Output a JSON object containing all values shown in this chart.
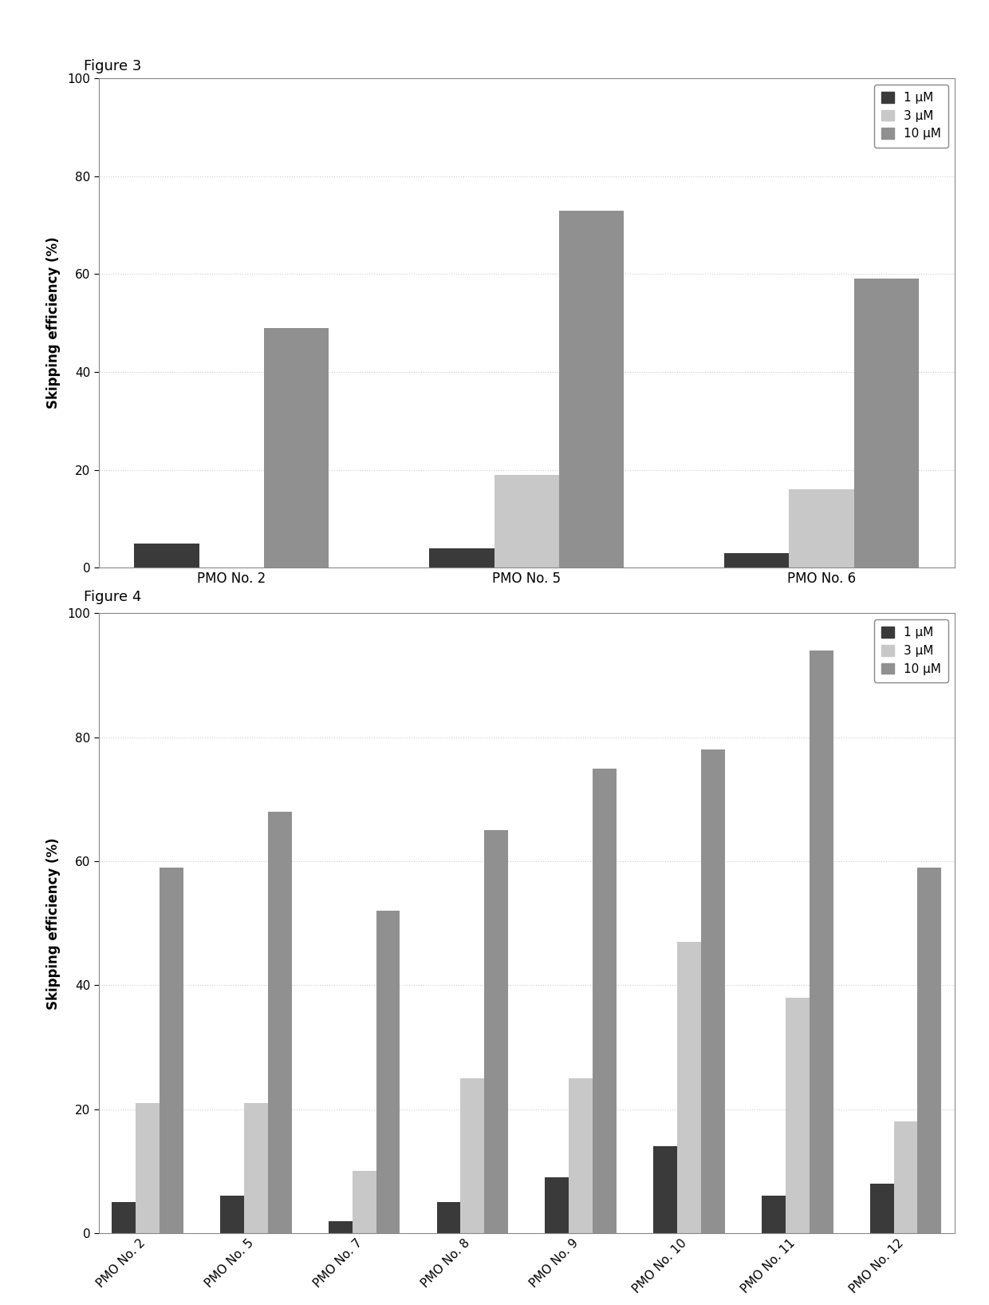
{
  "fig3": {
    "title": "Figure 3",
    "categories": [
      "PMO No. 2",
      "PMO No. 5",
      "PMO No. 6"
    ],
    "series": {
      "1 μM": [
        5,
        4,
        3
      ],
      "3 μM": [
        0,
        19,
        16
      ],
      "10 μM": [
        49,
        73,
        59
      ]
    },
    "ylabel": "Skipping efficiency (%)",
    "ylim": [
      0,
      100
    ],
    "yticks": [
      0,
      20,
      40,
      60,
      80,
      100
    ]
  },
  "fig4": {
    "title": "Figure 4",
    "categories": [
      "PMO No. 2",
      "PMO No. 5",
      "PMO No. 7",
      "PMO No. 8",
      "PMO No. 9",
      "PMO No. 10",
      "PMO No. 11",
      "PMO No. 12"
    ],
    "series": {
      "1 μM": [
        5,
        6,
        2,
        5,
        9,
        14,
        6,
        8
      ],
      "3 μM": [
        21,
        21,
        10,
        25,
        25,
        47,
        38,
        18
      ],
      "10 μM": [
        59,
        68,
        52,
        65,
        75,
        78,
        94,
        59
      ]
    },
    "ylabel": "Skipping efficiency (%)",
    "ylim": [
      0,
      100
    ],
    "yticks": [
      0,
      20,
      40,
      60,
      80,
      100
    ]
  },
  "colors": {
    "1 μM": "#3a3a3a",
    "3 μM": "#c8c8c8",
    "10 μM": "#909090"
  },
  "background_color": "#ffffff",
  "bar_width": 0.22,
  "legend_labels": [
    "1 μM",
    "3 μM",
    "10 μM"
  ]
}
